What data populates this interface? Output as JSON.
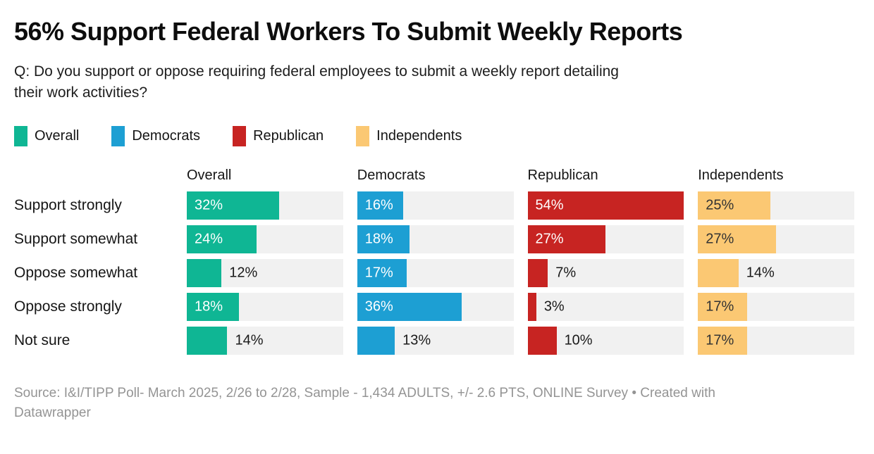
{
  "header": {
    "title": "56% Support Federal Workers To Submit Weekly Reports",
    "subtitle": "Q: Do you support or oppose requiring federal employees to submit a weekly report detailing their work activities?",
    "subtitle_lines": [
      "Q: Do you support or oppose requiring federal employees to submit a weekly report detailing",
      "their work activities?"
    ]
  },
  "legend": {
    "items": [
      {
        "label": "Overall",
        "color": "#0fb694"
      },
      {
        "label": "Democrats",
        "color": "#1d9fd3"
      },
      {
        "label": "Republican",
        "color": "#c72422"
      },
      {
        "label": "Independents",
        "color": "#fbc873"
      }
    ]
  },
  "chart_data": {
    "type": "bar",
    "layout": "split-bars-by-column",
    "title": "56% Support Federal Workers To Submit Weekly Reports",
    "categories": [
      "Support strongly",
      "Support somewhat",
      "Oppose somewhat",
      "Oppose strongly",
      "Not sure"
    ],
    "series": [
      {
        "name": "Overall",
        "color": "#0fb694",
        "values": [
          32,
          24,
          12,
          18,
          14
        ]
      },
      {
        "name": "Democrats",
        "color": "#1d9fd3",
        "values": [
          16,
          18,
          17,
          36,
          13
        ]
      },
      {
        "name": "Republican",
        "color": "#c72422",
        "values": [
          54,
          27,
          7,
          3,
          10
        ]
      },
      {
        "name": "Independents",
        "color": "#fbc873",
        "values": [
          25,
          27,
          14,
          17,
          17
        ],
        "value_label_color": "#333333"
      }
    ],
    "value_suffix": "%",
    "x_max": 54,
    "track_color": "#f1f1f1",
    "inside_label_min_value": 15,
    "grid": false,
    "legend_position": "top"
  },
  "footer": {
    "source": "Source: I&I/TIPP Poll- March 2025, 2/26 to 2/28, Sample - 1,434 ADULTS, +/- 2.6 PTS, ONLINE Survey • Created with Datawrapper",
    "lines": [
      "Source: I&I/TIPP Poll- March 2025, 2/26 to 2/28, Sample - 1,434 ADULTS, +/- 2.6 PTS, ONLINE Survey • Created with",
      "Datawrapper"
    ]
  }
}
